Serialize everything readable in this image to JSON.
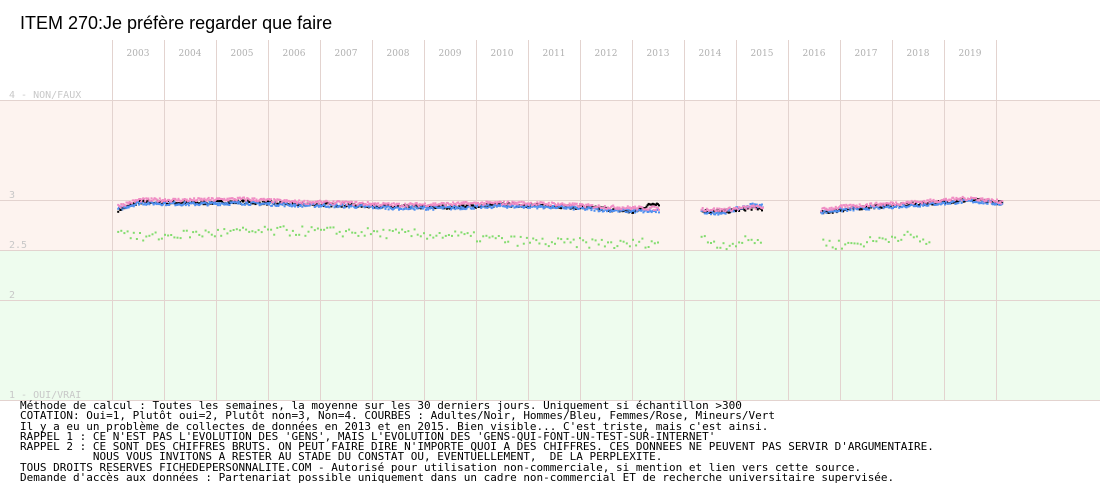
{
  "title": "ITEM 270:Je préfère regarder que faire",
  "colors": {
    "band_top": "#fdf3ef",
    "band_bottom": "#eefcee",
    "grid": "#e3d3cf",
    "adultes": "#000000",
    "hommes": "#4f8ff0",
    "femmes": "#f08cc4",
    "mineurs": "#82dc6e"
  },
  "chart_data": {
    "type": "scatter",
    "title": "ITEM 270:Je préfère regarder que faire",
    "x_ticks": [
      "2003",
      "2004",
      "2005",
      "2006",
      "2007",
      "2008",
      "2009",
      "2010",
      "2011",
      "2012",
      "2013",
      "2014",
      "2015",
      "2016",
      "2017",
      "2018",
      "2019"
    ],
    "y_ticks": [
      {
        "value": 4,
        "label": "4 - NON/FAUX"
      },
      {
        "value": 3,
        "label": "3"
      },
      {
        "value": 2.5,
        "label": "2.5"
      },
      {
        "value": 2,
        "label": "2"
      },
      {
        "value": 1,
        "label": "1 - OUI/VRAI"
      }
    ],
    "ylim": [
      1,
      4
    ],
    "xlim": [
      2002.55,
      2019.95
    ],
    "grid": true,
    "gaps": [
      [
        2013.0,
        2013.8
      ],
      [
        2015.0,
        2016.1
      ]
    ],
    "series": [
      {
        "name": "Adultes/Noir",
        "color": "#000000",
        "x": [
          2002.6,
          2003.0,
          2004.0,
          2005.0,
          2006.0,
          2007.0,
          2008.0,
          2009.0,
          2010.0,
          2011.0,
          2012.0,
          2012.5,
          2012.9,
          2013.8,
          2014.2,
          2014.8,
          2016.1,
          2016.5,
          2017.0,
          2018.0,
          2019.0,
          2019.6
        ],
        "y": [
          2.9,
          2.98,
          2.97,
          2.98,
          2.96,
          2.95,
          2.93,
          2.93,
          2.95,
          2.94,
          2.91,
          2.88,
          2.97,
          2.89,
          2.88,
          2.92,
          2.87,
          2.9,
          2.93,
          2.96,
          3.0,
          2.97
        ]
      },
      {
        "name": "Hommes/Bleu",
        "color": "#4f8ff0",
        "x": [
          2002.6,
          2003.0,
          2004.0,
          2005.0,
          2006.0,
          2007.0,
          2008.0,
          2009.0,
          2010.0,
          2011.0,
          2012.0,
          2012.5,
          2013.8,
          2014.2,
          2014.8,
          2016.1,
          2016.5,
          2017.0,
          2018.0,
          2019.0,
          2019.6
        ],
        "y": [
          2.91,
          2.97,
          2.96,
          2.97,
          2.95,
          2.94,
          2.92,
          2.92,
          2.94,
          2.93,
          2.9,
          2.89,
          2.88,
          2.87,
          2.95,
          2.88,
          2.9,
          2.92,
          2.95,
          2.99,
          2.96
        ]
      },
      {
        "name": "Femmes/Rose",
        "color": "#f08cc4",
        "x": [
          2002.6,
          2003.0,
          2004.0,
          2005.0,
          2006.0,
          2007.0,
          2008.0,
          2009.0,
          2010.0,
          2011.0,
          2012.0,
          2012.5,
          2013.8,
          2014.2,
          2014.8,
          2016.1,
          2016.5,
          2017.0,
          2018.0,
          2019.0,
          2019.6
        ],
        "y": [
          2.94,
          3.0,
          3.0,
          3.01,
          2.98,
          2.97,
          2.95,
          2.96,
          2.97,
          2.96,
          2.93,
          2.92,
          2.91,
          2.9,
          2.93,
          2.9,
          2.93,
          2.95,
          2.98,
          3.02,
          2.98
        ]
      },
      {
        "name": "Mineurs/Vert",
        "color": "#82dc6e",
        "x": [
          2002.6,
          2003.0,
          2004.0,
          2005.0,
          2006.0,
          2007.0,
          2008.0,
          2009.0,
          2010.0,
          2011.0,
          2012.0,
          2012.2,
          2013.8,
          2014.2,
          2014.8,
          2016.1,
          2016.5,
          2017.0,
          2017.7,
          2018.2
        ],
        "y": [
          2.72,
          2.62,
          2.66,
          2.68,
          2.69,
          2.68,
          2.66,
          2.65,
          2.6,
          2.57,
          2.57,
          2.55,
          2.62,
          2.55,
          2.6,
          2.58,
          2.55,
          2.58,
          2.65,
          2.57
        ]
      }
    ]
  },
  "notes": [
    "Méthode de calcul : Toutes les semaines, la moyenne sur les 30 derniers jours. Uniquement si échantillon >300",
    "COTATION: Oui=1, Plutôt oui=2, Plutôt non=3, Non=4. COURBES : Adultes/Noir, Hommes/Bleu, Femmes/Rose, Mineurs/Vert",
    "Il y a eu un problème de collectes de données en 2013 et en 2015. Bien visible... C'est triste, mais c'est ainsi.",
    "RAPPEL 1 : CE N'EST PAS L'EVOLUTION DES 'GENS', MAIS L'EVOLUTION DES 'GENS-QUI-FONT-UN-TEST-SUR-INTERNET'",
    "RAPPEL 2 : CE SONT DES CHIFFRES BRUTS. ON PEUT FAIRE DIRE N'IMPORTE QUOI A DES CHIFFRES. CES DONNEES NE PEUVENT PAS SERVIR D'ARGUMENTAIRE.",
    "           NOUS VOUS INVITONS A RESTER AU STADE DU CONSTAT OU, EVENTUELLEMENT,  DE LA PERPLEXITE.",
    "TOUS DROITS RESERVES FICHEDEPERSONNALITE.COM - Autorisé pour utilisation non-commerciale, si mention et lien vers cette source.",
    "Demande d'accès aux données : Partenariat possible uniquement dans un cadre non-commercial ET de recherche universitaire supervisée."
  ]
}
